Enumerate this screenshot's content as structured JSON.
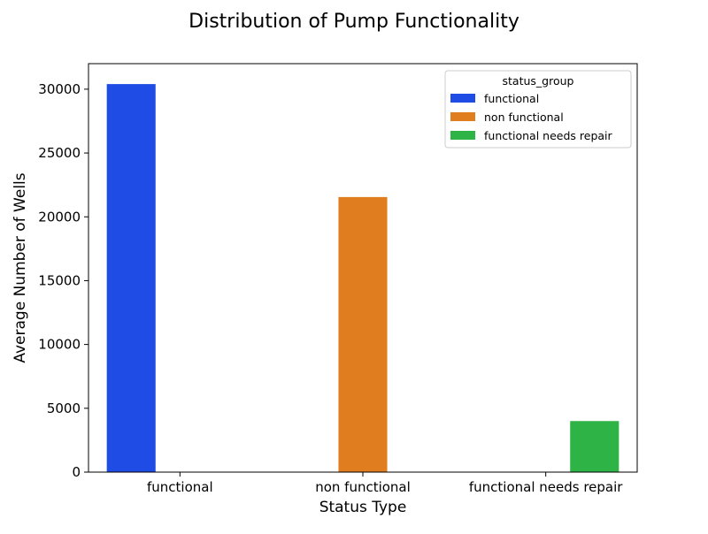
{
  "chart_data": {
    "type": "bar",
    "title": "Distribution of Pump Functionality",
    "xlabel": "Status Type",
    "ylabel": "Average Number of Wells",
    "categories": [
      "functional",
      "non functional",
      "functional needs repair"
    ],
    "ylim": [
      0,
      32000
    ],
    "yticks": [
      0,
      5000,
      10000,
      15000,
      20000,
      25000,
      30000
    ],
    "grid": false,
    "legend": {
      "title": "status_group",
      "placement": "top-right"
    },
    "series": [
      {
        "name": "functional",
        "color": "#1f4ce4",
        "values": [
          30400,
          null,
          null
        ]
      },
      {
        "name": "non functional",
        "color": "#e07d1f",
        "values": [
          null,
          21550,
          null
        ]
      },
      {
        "name": "functional needs repair",
        "color": "#2eb446",
        "values": [
          null,
          null,
          4000
        ]
      }
    ]
  }
}
